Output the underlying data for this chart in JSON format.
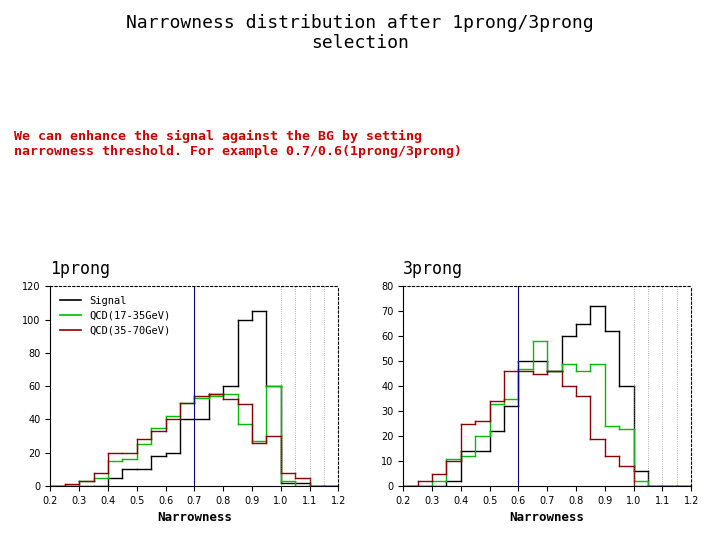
{
  "title": "Narrowness distribution after 1prong/3prong\nselection",
  "subtitle": "We can enhance the signal against the BG by setting\nnarrowness threshold. For example 0.7/0.6(1prong/3prong)",
  "subtitle_color": "#cc0000",
  "background_color": "#ffffff",
  "xlim": [
    0.2,
    1.2
  ],
  "xlabel": "Narrowness",
  "bin_edges": [
    0.2,
    0.25,
    0.3,
    0.35,
    0.4,
    0.45,
    0.5,
    0.55,
    0.6,
    0.65,
    0.7,
    0.75,
    0.8,
    0.85,
    0.9,
    0.95,
    1.0,
    1.05,
    1.1,
    1.15,
    1.2
  ],
  "plot1_title": "1prong",
  "plot1_ylim": [
    0,
    120
  ],
  "plot1_yticks": [
    0,
    20,
    40,
    60,
    80,
    100,
    120
  ],
  "plot1_vline": 0.7,
  "plot1_signal": [
    0,
    0,
    0,
    0,
    5,
    10,
    10,
    18,
    20,
    40,
    40,
    55,
    60,
    100,
    105,
    60,
    2,
    2,
    0,
    0
  ],
  "plot1_qcd1": [
    0,
    0,
    3,
    5,
    15,
    16,
    25,
    35,
    42,
    50,
    53,
    54,
    55,
    37,
    27,
    60,
    3,
    0,
    0,
    0
  ],
  "plot1_qcd2": [
    0,
    1,
    3,
    8,
    20,
    20,
    28,
    33,
    40,
    50,
    54,
    55,
    52,
    49,
    26,
    30,
    8,
    5,
    0,
    0
  ],
  "plot2_title": "3prong",
  "plot2_ylim": [
    0,
    80
  ],
  "plot2_yticks": [
    0,
    10,
    20,
    30,
    40,
    50,
    60,
    70,
    80
  ],
  "plot2_vline": 0.6,
  "plot2_signal": [
    0,
    0,
    0,
    2,
    14,
    14,
    22,
    32,
    50,
    50,
    46,
    60,
    65,
    72,
    62,
    40,
    6,
    0,
    0,
    0
  ],
  "plot2_qcd1": [
    0,
    0,
    2,
    11,
    12,
    20,
    33,
    35,
    47,
    58,
    46,
    49,
    46,
    49,
    24,
    23,
    2,
    0,
    0,
    0
  ],
  "plot2_qcd2": [
    0,
    2,
    5,
    10,
    25,
    26,
    34,
    46,
    46,
    45,
    46,
    40,
    36,
    19,
    12,
    8,
    0,
    0,
    0,
    0
  ],
  "signal_color": "#000000",
  "qcd1_color": "#00bb00",
  "qcd2_color": "#880000",
  "legend_signal": "Signal",
  "legend_qcd1": "QCD(17-35GeV)",
  "legend_qcd2": "QCD(35-70GeV)",
  "dotted_xlines": [
    1.0,
    1.05,
    1.1,
    1.15,
    1.2
  ]
}
